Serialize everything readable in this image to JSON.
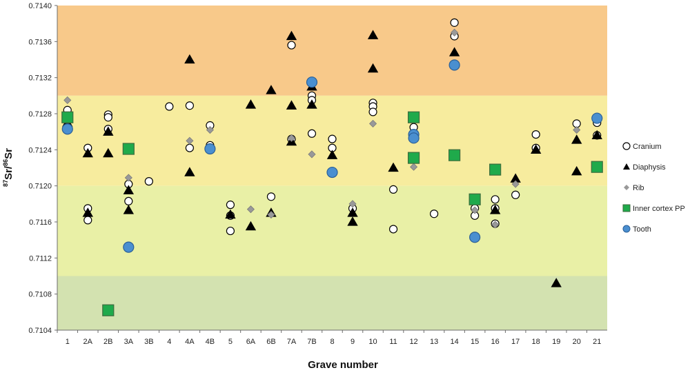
{
  "chart_data": {
    "type": "scatter",
    "xlabel": "Grave number",
    "ylabel_main": "Sr/",
    "ylabel_sup1": "87",
    "ylabel_sup2": "86",
    "ylabel_tail": "Sr",
    "categories": [
      "1",
      "2A",
      "2B",
      "3A",
      "3B",
      "4",
      "4A",
      "4B",
      "5",
      "6A",
      "6B",
      "7A",
      "7B",
      "8",
      "9",
      "10",
      "11",
      "12",
      "13",
      "14",
      "15",
      "16",
      "17",
      "18",
      "19",
      "20",
      "21"
    ],
    "ylim": [
      0.7104,
      0.714
    ],
    "yticks": [
      "0.7104",
      "0.7108",
      "0.7112",
      "0.7116",
      "0.7120",
      "0.7124",
      "0.7128",
      "0.7132",
      "0.7136",
      "0.7140"
    ],
    "bands": [
      {
        "from": 0.713,
        "to": 0.714,
        "color": "#f8c98a"
      },
      {
        "from": 0.712,
        "to": 0.713,
        "color": "#f7ec9e"
      },
      {
        "from": 0.711,
        "to": 0.712,
        "color": "#e9f0a6"
      },
      {
        "from": 0.7104,
        "to": 0.711,
        "color": "#d3e2b0"
      }
    ],
    "legend_position": "right",
    "series": [
      {
        "name": "Cranium",
        "marker": "circle",
        "fill": "#ffffff",
        "stroke": "#000000",
        "points": [
          {
            "x": "1",
            "y": 0.71284
          },
          {
            "x": "2A",
            "y": 0.71242
          },
          {
            "x": "2A",
            "y": 0.71175
          },
          {
            "x": "2A",
            "y": 0.71162
          },
          {
            "x": "2B",
            "y": 0.71279
          },
          {
            "x": "2B",
            "y": 0.71276
          },
          {
            "x": "2B",
            "y": 0.71263
          },
          {
            "x": "3A",
            "y": 0.71202
          },
          {
            "x": "3A",
            "y": 0.71183
          },
          {
            "x": "3B",
            "y": 0.71205
          },
          {
            "x": "4",
            "y": 0.71288
          },
          {
            "x": "4A",
            "y": 0.71289
          },
          {
            "x": "4A",
            "y": 0.71242
          },
          {
            "x": "4B",
            "y": 0.71267
          },
          {
            "x": "4B",
            "y": 0.71245
          },
          {
            "x": "5",
            "y": 0.71179
          },
          {
            "x": "5",
            "y": 0.71167
          },
          {
            "x": "5",
            "y": 0.7115
          },
          {
            "x": "6B",
            "y": 0.71188
          },
          {
            "x": "7A",
            "y": 0.71356
          },
          {
            "x": "7A",
            "y": 0.71252
          },
          {
            "x": "7B",
            "y": 0.713
          },
          {
            "x": "7B",
            "y": 0.71295
          },
          {
            "x": "7B",
            "y": 0.71258
          },
          {
            "x": "8",
            "y": 0.71252
          },
          {
            "x": "8",
            "y": 0.71242
          },
          {
            "x": "9",
            "y": 0.71175
          },
          {
            "x": "10",
            "y": 0.71292
          },
          {
            "x": "10",
            "y": 0.71288
          },
          {
            "x": "10",
            "y": 0.71282
          },
          {
            "x": "11",
            "y": 0.71196
          },
          {
            "x": "11",
            "y": 0.71152
          },
          {
            "x": "12",
            "y": 0.71265
          },
          {
            "x": "13",
            "y": 0.71169
          },
          {
            "x": "14",
            "y": 0.71381
          },
          {
            "x": "14",
            "y": 0.71366
          },
          {
            "x": "15",
            "y": 0.71175
          },
          {
            "x": "15",
            "y": 0.71167
          },
          {
            "x": "16",
            "y": 0.71185
          },
          {
            "x": "16",
            "y": 0.71175
          },
          {
            "x": "16",
            "y": 0.71158
          },
          {
            "x": "17",
            "y": 0.7119
          },
          {
            "x": "18",
            "y": 0.71257
          },
          {
            "x": "18",
            "y": 0.71242
          },
          {
            "x": "20",
            "y": 0.71269
          },
          {
            "x": "21",
            "y": 0.7127
          },
          {
            "x": "21",
            "y": 0.71256
          }
        ]
      },
      {
        "name": "Diaphysis",
        "marker": "triangle",
        "fill": "#000000",
        "stroke": "#000000",
        "points": [
          {
            "x": "1",
            "y": 0.7127
          },
          {
            "x": "2A",
            "y": 0.71236
          },
          {
            "x": "2A",
            "y": 0.7117
          },
          {
            "x": "2B",
            "y": 0.7126
          },
          {
            "x": "2B",
            "y": 0.71236
          },
          {
            "x": "3A",
            "y": 0.71195
          },
          {
            "x": "3A",
            "y": 0.71173
          },
          {
            "x": "4A",
            "y": 0.7134
          },
          {
            "x": "4A",
            "y": 0.71215
          },
          {
            "x": "5",
            "y": 0.71168
          },
          {
            "x": "6A",
            "y": 0.7129
          },
          {
            "x": "6A",
            "y": 0.71155
          },
          {
            "x": "6B",
            "y": 0.71306
          },
          {
            "x": "6B",
            "y": 0.7117
          },
          {
            "x": "7A",
            "y": 0.71366
          },
          {
            "x": "7A",
            "y": 0.71289
          },
          {
            "x": "7A",
            "y": 0.71249
          },
          {
            "x": "7B",
            "y": 0.7131
          },
          {
            "x": "7B",
            "y": 0.7129
          },
          {
            "x": "8",
            "y": 0.71234
          },
          {
            "x": "9",
            "y": 0.7117
          },
          {
            "x": "9",
            "y": 0.7116
          },
          {
            "x": "10",
            "y": 0.71367
          },
          {
            "x": "10",
            "y": 0.7133
          },
          {
            "x": "11",
            "y": 0.7122
          },
          {
            "x": "14",
            "y": 0.71348
          },
          {
            "x": "16",
            "y": 0.71173
          },
          {
            "x": "17",
            "y": 0.71208
          },
          {
            "x": "18",
            "y": 0.7124
          },
          {
            "x": "19",
            "y": 0.71092
          },
          {
            "x": "20",
            "y": 0.71251
          },
          {
            "x": "20",
            "y": 0.71216
          },
          {
            "x": "21",
            "y": 0.71256
          }
        ]
      },
      {
        "name": "Rib",
        "marker": "diamond",
        "fill": "#999999",
        "stroke": "#7a7a7a",
        "points": [
          {
            "x": "1",
            "y": 0.71295
          },
          {
            "x": "3A",
            "y": 0.71209
          },
          {
            "x": "4A",
            "y": 0.7125
          },
          {
            "x": "4B",
            "y": 0.71262
          },
          {
            "x": "6A",
            "y": 0.71174
          },
          {
            "x": "6B",
            "y": 0.71168
          },
          {
            "x": "7A",
            "y": 0.71253
          },
          {
            "x": "7B",
            "y": 0.71235
          },
          {
            "x": "9",
            "y": 0.7118
          },
          {
            "x": "10",
            "y": 0.71269
          },
          {
            "x": "12",
            "y": 0.71221
          },
          {
            "x": "14",
            "y": 0.7137
          },
          {
            "x": "15",
            "y": 0.71173
          },
          {
            "x": "16",
            "y": 0.71157
          },
          {
            "x": "17",
            "y": 0.71202
          },
          {
            "x": "20",
            "y": 0.71262
          }
        ]
      },
      {
        "name": "Inner cortex PP",
        "marker": "square",
        "fill": "#1faa4b",
        "stroke": "#3d6b3d",
        "points": [
          {
            "x": "1",
            "y": 0.71276
          },
          {
            "x": "2B",
            "y": 0.71062
          },
          {
            "x": "3A",
            "y": 0.71241
          },
          {
            "x": "12",
            "y": 0.71276
          },
          {
            "x": "12",
            "y": 0.71231
          },
          {
            "x": "14",
            "y": 0.71234
          },
          {
            "x": "15",
            "y": 0.71185
          },
          {
            "x": "16",
            "y": 0.71218
          },
          {
            "x": "21",
            "y": 0.71221
          }
        ]
      },
      {
        "name": "Tooth",
        "marker": "circle-blue",
        "fill": "#4a8fd0",
        "stroke": "#2a5f97",
        "points": [
          {
            "x": "1",
            "y": 0.71263
          },
          {
            "x": "3A",
            "y": 0.71132
          },
          {
            "x": "4B",
            "y": 0.71241
          },
          {
            "x": "7B",
            "y": 0.71315
          },
          {
            "x": "8",
            "y": 0.71215
          },
          {
            "x": "12",
            "y": 0.71257
          },
          {
            "x": "12",
            "y": 0.71253
          },
          {
            "x": "14",
            "y": 0.71334
          },
          {
            "x": "15",
            "y": 0.71143
          },
          {
            "x": "21",
            "y": 0.71275
          }
        ]
      }
    ]
  }
}
